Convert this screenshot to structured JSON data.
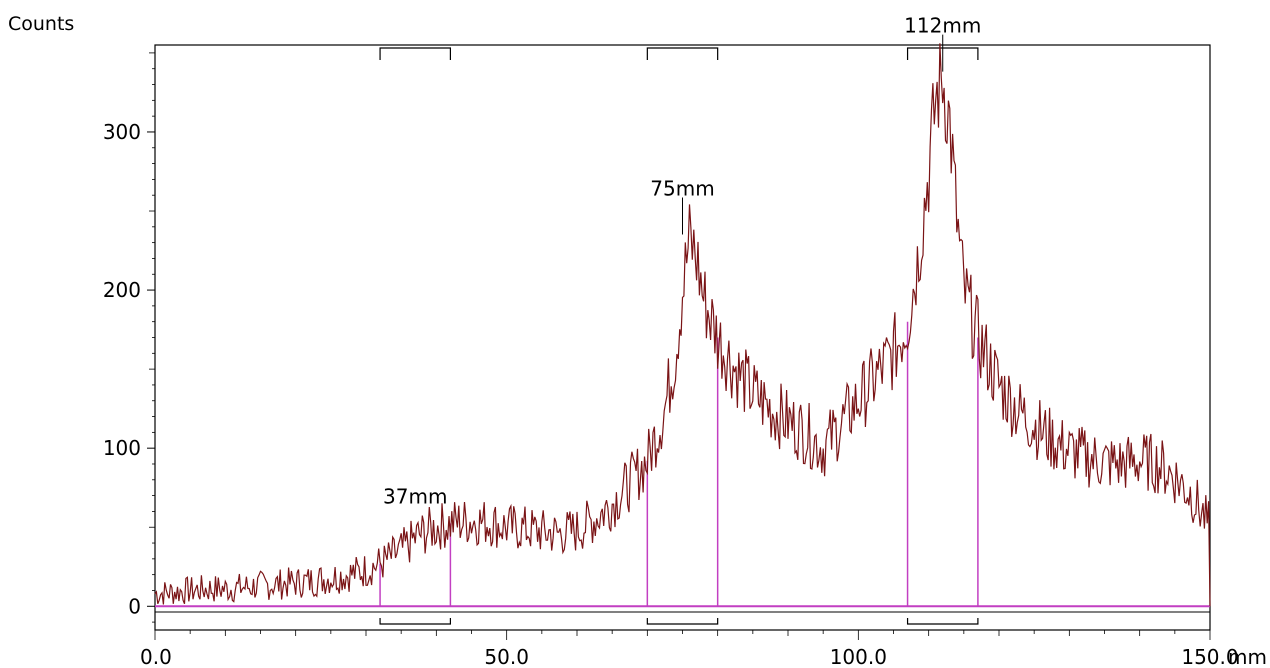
{
  "chart_data": {
    "type": "line",
    "title": "",
    "ylabel": "Counts",
    "xlabel": "mm",
    "xlim": [
      0,
      150
    ],
    "ylim": [
      -15,
      355
    ],
    "x_ticks": [
      {
        "value": 0,
        "label": "0.0"
      },
      {
        "value": 50,
        "label": "50.0"
      },
      {
        "value": 100,
        "label": "100.0"
      },
      {
        "value": 150,
        "label": "150.0"
      }
    ],
    "y_ticks": [
      {
        "value": 0,
        "label": "0"
      },
      {
        "value": 100,
        "label": "100"
      },
      {
        "value": 200,
        "label": "200"
      },
      {
        "value": 300,
        "label": "300"
      }
    ],
    "grid": false,
    "series": [
      {
        "color": "#7a1416",
        "points": [
          [
            0,
            8
          ],
          [
            2.5,
            9
          ],
          [
            5,
            10
          ],
          [
            7.5,
            11
          ],
          [
            10,
            11
          ],
          [
            12.5,
            12
          ],
          [
            15,
            13
          ],
          [
            17.5,
            14
          ],
          [
            20,
            15
          ],
          [
            22.5,
            16
          ],
          [
            25,
            18
          ],
          [
            27.5,
            20
          ],
          [
            30,
            23
          ],
          [
            32.5,
            28
          ],
          [
            35,
            35
          ],
          [
            37.5,
            45
          ],
          [
            40,
            50
          ],
          [
            42.5,
            53
          ],
          [
            45,
            54
          ],
          [
            47.5,
            53
          ],
          [
            50,
            50
          ],
          [
            52.5,
            49
          ],
          [
            55,
            47
          ],
          [
            57.5,
            46
          ],
          [
            60,
            48
          ],
          [
            62.5,
            55
          ],
          [
            65,
            65
          ],
          [
            67.5,
            78
          ],
          [
            70,
            92
          ],
          [
            72.5,
            125
          ],
          [
            74,
            160
          ],
          [
            75,
            200
          ],
          [
            76,
            232
          ],
          [
            77,
            220
          ],
          [
            78,
            195
          ],
          [
            80,
            170
          ],
          [
            82.5,
            150
          ],
          [
            85,
            135
          ],
          [
            87.5,
            125
          ],
          [
            90,
            117
          ],
          [
            92.5,
            110
          ],
          [
            95,
            100
          ],
          [
            97.5,
            115
          ],
          [
            100,
            130
          ],
          [
            102.5,
            145
          ],
          [
            105,
            160
          ],
          [
            107,
            180
          ],
          [
            108.5,
            220
          ],
          [
            110,
            275
          ],
          [
            111,
            320
          ],
          [
            112,
            335
          ],
          [
            113,
            305
          ],
          [
            114,
            245
          ],
          [
            115,
            200
          ],
          [
            117,
            170
          ],
          [
            120,
            140
          ],
          [
            122.5,
            125
          ],
          [
            125,
            115
          ],
          [
            127.5,
            105
          ],
          [
            130,
            98
          ],
          [
            132.5,
            94
          ],
          [
            135,
            91
          ],
          [
            137.5,
            90
          ],
          [
            140,
            92
          ],
          [
            142.5,
            90
          ],
          [
            145,
            82
          ],
          [
            147.5,
            70
          ],
          [
            150,
            50
          ]
        ]
      }
    ],
    "regions": [
      {
        "start": 32,
        "end": 42
      },
      {
        "start": 70,
        "end": 80
      },
      {
        "start": 107,
        "end": 117
      }
    ],
    "annotations": [
      {
        "x": 37,
        "y": 60,
        "text": "37mm"
      },
      {
        "x": 75,
        "y": 232,
        "text": "75mm"
      },
      {
        "x": 112,
        "y": 335,
        "text": "112mm"
      }
    ],
    "colors": {
      "signal": "#7a1416",
      "region": "#c23fc2",
      "axis": "#000000"
    }
  }
}
